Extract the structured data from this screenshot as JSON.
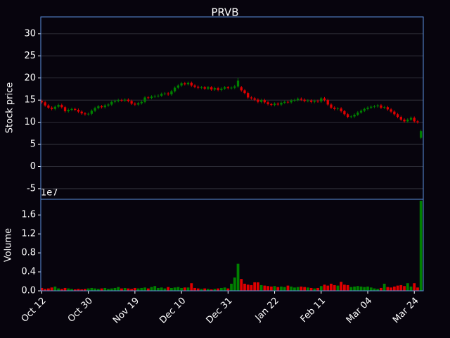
{
  "chart_data": {
    "type": "candlestick",
    "title": "PRVB",
    "ylabel": "Stock price",
    "up_color": "#008000",
    "down_color": "#e00000",
    "grid": true,
    "categories": [
      "Oct 12",
      null,
      null,
      null,
      null,
      null,
      null,
      null,
      null,
      null,
      null,
      null,
      null,
      null,
      "Oct 30",
      null,
      null,
      null,
      null,
      null,
      null,
      null,
      null,
      null,
      null,
      null,
      null,
      null,
      "Nov 19",
      null,
      null,
      null,
      null,
      null,
      null,
      null,
      null,
      null,
      null,
      null,
      null,
      null,
      "Dec 10",
      null,
      null,
      null,
      null,
      null,
      null,
      null,
      null,
      null,
      null,
      null,
      null,
      null,
      "Dec 31",
      null,
      null,
      null,
      null,
      null,
      null,
      null,
      null,
      null,
      null,
      null,
      null,
      null,
      "Jan 22",
      null,
      null,
      null,
      null,
      null,
      null,
      null,
      null,
      null,
      null,
      null,
      null,
      null,
      "Feb 11",
      null,
      null,
      null,
      null,
      null,
      null,
      null,
      null,
      null,
      null,
      null,
      null,
      null,
      "Mar 04",
      null,
      null,
      null,
      null,
      null,
      null,
      null,
      null,
      null,
      null,
      null,
      null,
      null,
      "Mar 24",
      null,
      null
    ],
    "open": [
      14.8,
      14.5,
      13.8,
      13.3,
      13.0,
      13.5,
      13.9,
      13.4,
      12.5,
      12.8,
      13.0,
      12.8,
      12.4,
      12.0,
      11.8,
      11.9,
      12.6,
      13.2,
      13.6,
      13.4,
      13.8,
      14.0,
      14.6,
      14.8,
      15.0,
      14.9,
      15.1,
      14.8,
      14.2,
      14.0,
      14.3,
      14.6,
      15.6,
      15.5,
      15.8,
      15.9,
      16.0,
      16.4,
      16.5,
      16.3,
      17.0,
      17.8,
      18.3,
      18.8,
      18.6,
      18.9,
      18.3,
      18.0,
      17.8,
      17.9,
      17.6,
      17.9,
      17.4,
      17.7,
      17.3,
      17.6,
      17.9,
      17.7,
      17.8,
      18.1,
      17.9,
      17.2,
      16.6,
      15.6,
      15.4,
      15.1,
      14.6,
      15.0,
      14.5,
      14.1,
      13.9,
      14.2,
      14.0,
      14.4,
      14.6,
      14.5,
      14.9,
      15.0,
      15.3,
      15.1,
      14.8,
      14.9,
      14.6,
      14.8,
      14.7,
      15.4,
      15.0,
      14.0,
      13.3,
      13.0,
      13.1,
      12.5,
      11.8,
      11.2,
      11.3,
      11.7,
      12.2,
      12.6,
      13.0,
      13.3,
      13.5,
      13.6,
      13.8,
      13.3,
      13.4,
      12.9,
      12.4,
      11.8,
      11.2,
      10.6,
      10.2,
      10.6,
      11.0,
      10.2,
      6.5
    ],
    "high": [
      15.1,
      14.8,
      14.1,
      13.6,
      13.8,
      14.2,
      14.2,
      13.7,
      13.1,
      13.3,
      13.3,
      13.1,
      12.7,
      12.3,
      12.2,
      12.9,
      13.5,
      13.9,
      13.9,
      14.1,
      14.3,
      14.9,
      15.1,
      15.3,
      15.3,
      15.4,
      15.4,
      15.1,
      14.5,
      14.6,
      14.9,
      15.9,
      15.9,
      16.1,
      16.2,
      16.3,
      16.7,
      16.8,
      16.8,
      17.3,
      18.1,
      18.6,
      19.1,
      19.1,
      19.2,
      19.2,
      18.6,
      18.3,
      18.2,
      18.2,
      18.2,
      18.2,
      18.0,
      18.0,
      17.9,
      18.2,
      18.2,
      18.1,
      18.4,
      20.0,
      18.2,
      17.5,
      16.9,
      15.9,
      15.7,
      15.4,
      15.3,
      15.3,
      14.8,
      14.4,
      14.5,
      14.5,
      14.7,
      14.9,
      14.9,
      15.2,
      15.3,
      15.6,
      15.6,
      15.4,
      15.2,
      15.2,
      15.1,
      15.1,
      15.7,
      15.7,
      15.3,
      14.3,
      13.6,
      13.4,
      13.4,
      12.8,
      12.1,
      11.6,
      12.0,
      12.5,
      12.9,
      13.3,
      13.6,
      13.8,
      13.9,
      14.1,
      14.1,
      13.7,
      13.7,
      13.2,
      12.7,
      12.1,
      11.5,
      10.9,
      10.9,
      11.3,
      11.3,
      10.5,
      8.3
    ],
    "low": [
      14.2,
      13.5,
      13.0,
      12.7,
      12.7,
      13.2,
      13.1,
      12.2,
      12.2,
      12.5,
      12.5,
      12.1,
      11.7,
      11.5,
      11.5,
      11.6,
      12.3,
      12.9,
      13.1,
      13.1,
      13.5,
      13.7,
      14.3,
      14.5,
      14.6,
      14.6,
      14.5,
      13.9,
      13.7,
      13.7,
      14.0,
      14.3,
      15.2,
      15.2,
      15.5,
      15.6,
      15.7,
      16.1,
      16.0,
      16.0,
      16.7,
      17.5,
      18.0,
      18.3,
      18.3,
      18.0,
      17.7,
      17.5,
      17.5,
      17.3,
      17.3,
      17.1,
      17.1,
      17.0,
      17.0,
      17.3,
      17.4,
      17.4,
      17.5,
      17.8,
      16.9,
      16.3,
      15.3,
      15.1,
      14.8,
      14.3,
      14.3,
      14.2,
      13.8,
      13.6,
      13.6,
      13.7,
      13.7,
      14.1,
      14.2,
      14.2,
      14.6,
      14.7,
      14.8,
      14.5,
      14.5,
      14.3,
      14.3,
      14.4,
      14.4,
      14.7,
      13.7,
      13.0,
      12.7,
      12.7,
      12.2,
      11.5,
      10.9,
      10.9,
      11.0,
      11.4,
      11.9,
      12.3,
      12.7,
      13.0,
      13.2,
      13.3,
      13.0,
      13.0,
      12.6,
      12.1,
      11.5,
      10.9,
      10.3,
      9.9,
      9.9,
      10.3,
      9.9,
      9.7,
      6.2
    ],
    "close": [
      14.5,
      13.8,
      13.3,
      13.0,
      13.5,
      13.9,
      13.4,
      12.5,
      12.8,
      13.0,
      12.8,
      12.4,
      12.0,
      11.8,
      11.9,
      12.6,
      13.2,
      13.6,
      13.4,
      13.8,
      14.0,
      14.6,
      14.8,
      15.0,
      14.9,
      15.1,
      14.8,
      14.2,
      14.0,
      14.3,
      14.6,
      15.6,
      15.5,
      15.8,
      15.9,
      16.0,
      16.4,
      16.5,
      16.3,
      17.0,
      17.8,
      18.3,
      18.8,
      18.6,
      18.9,
      18.3,
      18.0,
      17.8,
      17.9,
      17.6,
      17.9,
      17.4,
      17.7,
      17.3,
      17.6,
      17.9,
      17.7,
      17.8,
      18.1,
      19.4,
      17.2,
      16.6,
      15.6,
      15.4,
      15.1,
      14.6,
      15.0,
      14.5,
      14.1,
      13.9,
      14.2,
      14.0,
      14.4,
      14.6,
      14.5,
      14.9,
      15.0,
      15.3,
      15.1,
      14.8,
      14.9,
      14.6,
      14.8,
      14.7,
      15.4,
      15.0,
      14.0,
      13.3,
      13.0,
      13.1,
      12.5,
      11.8,
      11.2,
      11.3,
      11.7,
      12.2,
      12.6,
      13.0,
      13.3,
      13.5,
      13.6,
      13.8,
      13.3,
      13.4,
      12.9,
      12.4,
      11.8,
      11.2,
      10.6,
      10.2,
      10.6,
      11.0,
      10.2,
      10.0,
      8.0
    ],
    "ylim": [
      -7.4,
      33.8
    ],
    "yticks": [
      -5,
      0,
      5,
      10,
      15,
      20,
      25,
      30
    ],
    "volume": {
      "ylabel": "Volume",
      "offset_label": "1e7",
      "values": [
        600000,
        400000,
        500000,
        700000,
        900000,
        500000,
        400000,
        600000,
        500000,
        400000,
        300000,
        400000,
        300000,
        400000,
        500000,
        600000,
        500000,
        400000,
        500000,
        600000,
        400000,
        500000,
        600000,
        800000,
        500000,
        600000,
        500000,
        400000,
        600000,
        500000,
        600000,
        700000,
        500000,
        800000,
        1000000,
        600000,
        700000,
        500000,
        800000,
        600000,
        700000,
        800000,
        600000,
        700000,
        700000,
        1600000,
        600000,
        500000,
        400000,
        500000,
        400000,
        300000,
        400000,
        500000,
        600000,
        700000,
        500000,
        1500000,
        2800000,
        5700000,
        2500000,
        1500000,
        1300000,
        1200000,
        1800000,
        1800000,
        1200000,
        1100000,
        1000000,
        900000,
        1000000,
        800000,
        900000,
        800000,
        1100000,
        900000,
        700000,
        800000,
        900000,
        800000,
        700000,
        600000,
        500000,
        600000,
        1000000,
        1300000,
        1100000,
        1500000,
        1200000,
        1100000,
        1900000,
        1300000,
        1200000,
        800000,
        900000,
        1000000,
        900000,
        800000,
        900000,
        700000,
        500000,
        400000,
        600000,
        1500000,
        800000,
        700000,
        900000,
        1100000,
        1200000,
        1000000,
        1600000,
        900000,
        1600000,
        700000,
        19000000
      ],
      "ylim": [
        0,
        19300000
      ],
      "yticks": [
        {
          "value": 0,
          "label": "0.0"
        },
        {
          "value": 4000000,
          "label": "0.4"
        },
        {
          "value": 8000000,
          "label": "0.8"
        },
        {
          "value": 12000000,
          "label": "1.2"
        },
        {
          "value": 16000000,
          "label": "1.6"
        }
      ]
    }
  }
}
